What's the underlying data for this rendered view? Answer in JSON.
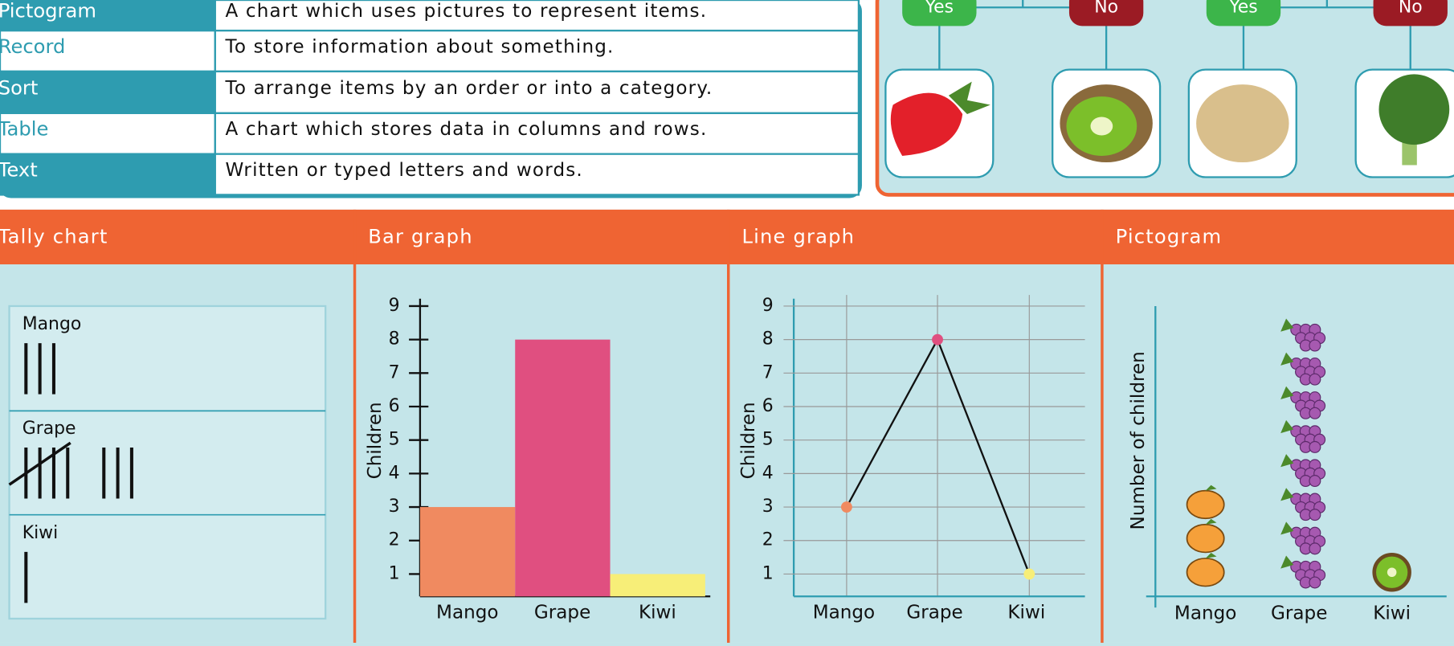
{
  "glossary": [
    {
      "term": "Pictogram",
      "definition": "A chart which uses pictures to represent items."
    },
    {
      "term": "Record",
      "definition": "To store information about something."
    },
    {
      "term": "Sort",
      "definition": "To arrange items by an order or into a category."
    },
    {
      "term": "Table",
      "definition": "A chart which stores data in columns and rows."
    },
    {
      "term": "Text",
      "definition": "Written or typed letters and words."
    }
  ],
  "tree": {
    "answers": [
      "Yes",
      "No",
      "Yes",
      "No"
    ]
  },
  "tally_chart": {
    "type": "tally",
    "title": "Tally chart",
    "categories": [
      "Mango",
      "Grape",
      "Kiwi"
    ],
    "values": [
      3,
      8,
      1
    ]
  },
  "bar_graph": {
    "type": "bar",
    "title": "Bar graph",
    "y_label": "Children",
    "categories": [
      "Mango",
      "Grape",
      "Kiwi"
    ],
    "values": [
      3,
      8,
      1
    ],
    "colors": [
      "#f08a60",
      "#e04f80",
      "#f7ee78"
    ],
    "ylim": [
      0,
      9
    ],
    "yticks": [
      1,
      2,
      3,
      4,
      5,
      6,
      7,
      8,
      9
    ]
  },
  "line_graph": {
    "type": "line",
    "title": "Line graph",
    "y_label": "Children",
    "categories": [
      "Mango",
      "Grape",
      "Kiwi"
    ],
    "values": [
      3,
      8,
      1
    ],
    "colors": [
      "#f08a60",
      "#e04f80",
      "#f7ee78"
    ],
    "ylim": [
      0,
      9
    ],
    "yticks": [
      1,
      2,
      3,
      4,
      5,
      6,
      7,
      8,
      9
    ],
    "grid": true
  },
  "pictogram": {
    "type": "pictogram",
    "title": "Pictogram",
    "y_label": "Number of children",
    "categories": [
      "Mango",
      "Grape",
      "Kiwi"
    ],
    "values": [
      3,
      8,
      1
    ]
  }
}
